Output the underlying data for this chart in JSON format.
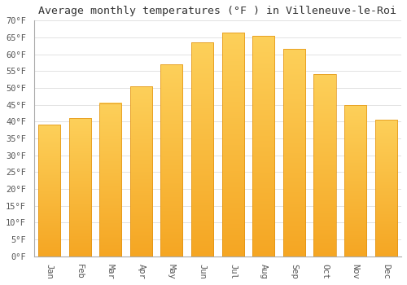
{
  "title": "Average monthly temperatures (°F ) in Villeneuve-le-Roi",
  "months": [
    "Jan",
    "Feb",
    "Mar",
    "Apr",
    "May",
    "Jun",
    "Jul",
    "Aug",
    "Sep",
    "Oct",
    "Nov",
    "Dec"
  ],
  "values": [
    39,
    41,
    45.5,
    50.5,
    57,
    63.5,
    66.5,
    65.5,
    61.5,
    54,
    45,
    40.5
  ],
  "bar_color_top": "#FDD05A",
  "bar_color_bottom": "#F5A623",
  "bar_edge_color": "#E09010",
  "ylim": [
    0,
    70
  ],
  "ytick_step": 5,
  "background_color": "#ffffff",
  "grid_color": "#dddddd",
  "title_fontsize": 9.5,
  "tick_fontsize": 7.5,
  "xlabel_rotation": -90
}
